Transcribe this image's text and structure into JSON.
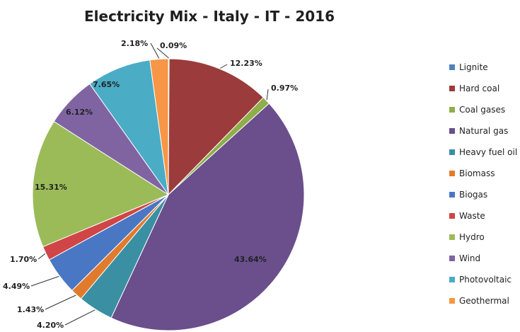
{
  "chart_data": {
    "type": "pie",
    "title": "Electricity Mix - Italy - IT - 2016",
    "legend_position": "right",
    "slices": [
      {
        "name": "Lignite",
        "value": 0.09,
        "label": "0.09%",
        "color": "#4f81bd"
      },
      {
        "name": "Hard coal",
        "value": 12.23,
        "label": "12.23%",
        "color": "#9b3b3b"
      },
      {
        "name": "Coal gases",
        "value": 0.97,
        "label": "0.97%",
        "color": "#8fae4b"
      },
      {
        "name": "Natural gas",
        "value": 43.64,
        "label": "43.64%",
        "color": "#6a4f8c"
      },
      {
        "name": "Heavy fuel oil",
        "value": 4.2,
        "label": "4.20%",
        "color": "#3a8fa3"
      },
      {
        "name": "Biomass",
        "value": 1.43,
        "label": "1.43%",
        "color": "#e07b2e"
      },
      {
        "name": "Biogas",
        "value": 4.49,
        "label": "4.49%",
        "color": "#4a77c4"
      },
      {
        "name": "Waste",
        "value": 1.7,
        "label": "1.70%",
        "color": "#d04545"
      },
      {
        "name": "Hydro",
        "value": 15.31,
        "label": "15.31%",
        "color": "#9bbb59"
      },
      {
        "name": "Wind",
        "value": 6.12,
        "label": "6.12%",
        "color": "#8064a2"
      },
      {
        "name": "Photovoltaic",
        "value": 7.65,
        "label": "7.65%",
        "color": "#4bacc6"
      },
      {
        "name": "Geothermal",
        "value": 2.18,
        "label": "2.18%",
        "color": "#f79646"
      }
    ]
  }
}
